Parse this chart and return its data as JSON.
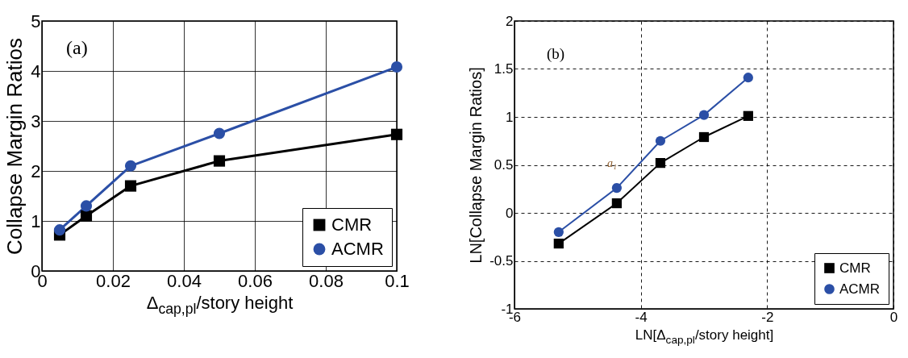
{
  "chart_data": [
    {
      "type": "line",
      "xlabel": "Δ$_{cap,pl}$/story height",
      "ylabel": "Collapse Margin Ratios",
      "annotations": [
        "(a)"
      ],
      "x": [
        0.005,
        0.0125,
        0.025,
        0.05,
        0.1
      ],
      "series": [
        {
          "name": "CMR",
          "color": "#000000",
          "marker": "square",
          "values": [
            0.72,
            1.1,
            1.7,
            2.2,
            2.73
          ]
        },
        {
          "name": "ACMR",
          "color": "#2b4fa6",
          "marker": "circle",
          "values": [
            0.82,
            1.3,
            2.1,
            2.75,
            4.08
          ]
        }
      ],
      "xlim": [
        0,
        0.1
      ],
      "xticks": [
        0,
        0.02,
        0.04,
        0.06,
        0.08,
        0.1
      ],
      "ylim": [
        0,
        5
      ],
      "yticks": [
        0,
        1,
        2,
        3,
        4,
        5
      ],
      "grid": true,
      "legend": "bottom right"
    },
    {
      "type": "line",
      "xlabel": "LN[Δ$_{cap,pl}$/story height]",
      "ylabel": "LN[Collapse Margin Ratios]",
      "annotations": [
        "(b)",
        "a₁"
      ],
      "x": [
        -5.3,
        -4.38,
        -3.69,
        -3.0,
        -2.3
      ],
      "series": [
        {
          "name": "CMR",
          "color": "#000000",
          "marker": "square",
          "values": [
            -0.32,
            0.1,
            0.52,
            0.79,
            1.01
          ]
        },
        {
          "name": "ACMR",
          "color": "#2b4fa6",
          "marker": "circle",
          "values": [
            -0.2,
            0.26,
            0.75,
            1.02,
            1.41
          ]
        }
      ],
      "xlim": [
        -6,
        0
      ],
      "xticks": [
        -6,
        -4,
        -2,
        0
      ],
      "ylim": [
        -1,
        2
      ],
      "yticks": [
        -1,
        -0.5,
        0,
        0.5,
        1,
        1.5,
        2
      ],
      "grid": true,
      "legend": "bottom right"
    }
  ]
}
